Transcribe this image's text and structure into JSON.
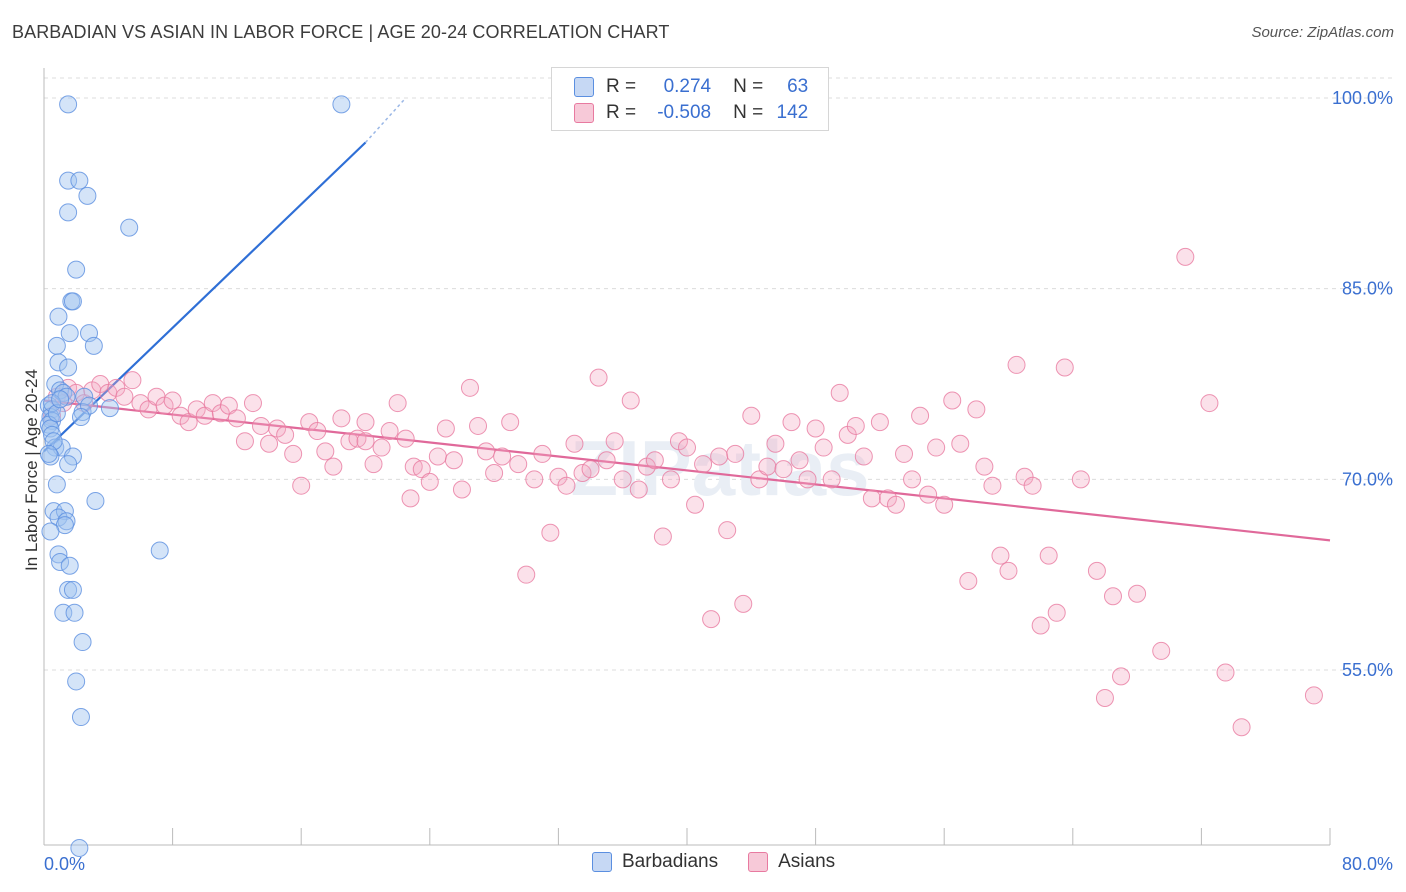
{
  "title": "BARBADIAN VS ASIAN IN LABOR FORCE | AGE 20-24 CORRELATION CHART",
  "source": "Source: ZipAtlas.com",
  "watermark": "ZIPatlas",
  "legend": {
    "r_label": "R =",
    "n_label": "N =",
    "rows": [
      {
        "name": "Barbadians",
        "r": "0.274",
        "n": "63",
        "color": "#5b8fe0",
        "fill": "#c6d8f4"
      },
      {
        "name": "Asians",
        "r": "-0.508",
        "n": "142",
        "color": "#e87aa0",
        "fill": "#f7c9d8"
      }
    ]
  },
  "chart_data": {
    "type": "scatter",
    "title": "BARBADIAN VS ASIAN IN LABOR FORCE | AGE 20-24 CORRELATION CHART",
    "xlabel": "",
    "ylabel": "In Labor Force | Age 20-24",
    "xlim": [
      0,
      80
    ],
    "ylim": [
      40,
      101
    ],
    "x_tick_labels": [
      "0.0%",
      "80.0%"
    ],
    "y_ticks": [
      55,
      70,
      85,
      100
    ],
    "y_tick_labels": [
      "55.0%",
      "70.0%",
      "85.0%",
      "100.0%"
    ],
    "grid": true,
    "series": [
      {
        "name": "Barbadians",
        "color": "#5b8fe0",
        "points": [
          [
            1.5,
            99.5
          ],
          [
            18.5,
            99.5
          ],
          [
            1.5,
            93.5
          ],
          [
            2.2,
            93.5
          ],
          [
            2.7,
            92.3
          ],
          [
            1.5,
            91.0
          ],
          [
            5.3,
            89.8
          ],
          [
            2.0,
            86.5
          ],
          [
            1.7,
            84.0
          ],
          [
            1.8,
            84.0
          ],
          [
            0.9,
            82.8
          ],
          [
            1.6,
            81.5
          ],
          [
            0.8,
            80.5
          ],
          [
            2.8,
            81.5
          ],
          [
            3.1,
            80.5
          ],
          [
            0.9,
            79.2
          ],
          [
            1.5,
            78.8
          ],
          [
            0.7,
            77.5
          ],
          [
            1.0,
            77.0
          ],
          [
            1.2,
            76.8
          ],
          [
            1.4,
            76.5
          ],
          [
            2.5,
            76.5
          ],
          [
            0.3,
            75.8
          ],
          [
            0.5,
            75.5
          ],
          [
            2.4,
            75.3
          ],
          [
            2.8,
            75.8
          ],
          [
            4.1,
            75.6
          ],
          [
            0.4,
            74.9
          ],
          [
            0.5,
            74.6
          ],
          [
            2.3,
            74.9
          ],
          [
            0.3,
            74.3
          ],
          [
            0.4,
            74.0
          ],
          [
            0.5,
            73.5
          ],
          [
            0.7,
            72.5
          ],
          [
            1.1,
            72.5
          ],
          [
            0.4,
            71.8
          ],
          [
            1.8,
            71.8
          ],
          [
            1.5,
            71.2
          ],
          [
            0.8,
            69.6
          ],
          [
            3.2,
            68.3
          ],
          [
            0.6,
            67.5
          ],
          [
            1.3,
            67.5
          ],
          [
            0.9,
            67.0
          ],
          [
            1.4,
            66.7
          ],
          [
            1.3,
            66.4
          ],
          [
            0.4,
            65.9
          ],
          [
            7.2,
            64.4
          ],
          [
            0.9,
            64.1
          ],
          [
            1.0,
            63.5
          ],
          [
            1.6,
            63.2
          ],
          [
            1.5,
            61.3
          ],
          [
            1.8,
            61.3
          ],
          [
            1.2,
            59.5
          ],
          [
            1.9,
            59.5
          ],
          [
            2.4,
            57.2
          ],
          [
            2.0,
            54.1
          ],
          [
            2.3,
            51.3
          ],
          [
            2.2,
            41.0
          ],
          [
            0.5,
            76.0
          ],
          [
            0.8,
            75.2
          ],
          [
            1.0,
            76.3
          ],
          [
            0.6,
            73.0
          ],
          [
            0.3,
            72.0
          ]
        ]
      },
      {
        "name": "Asians",
        "color": "#e87aa0",
        "points": [
          [
            0.5,
            75.0
          ],
          [
            0.8,
            76.5
          ],
          [
            1.2,
            76.0
          ],
          [
            1.5,
            77.2
          ],
          [
            2.0,
            76.8
          ],
          [
            2.5,
            76.0
          ],
          [
            3.0,
            77.0
          ],
          [
            3.5,
            77.5
          ],
          [
            4.0,
            76.8
          ],
          [
            4.5,
            77.2
          ],
          [
            5.0,
            76.5
          ],
          [
            5.5,
            77.8
          ],
          [
            6.0,
            76.0
          ],
          [
            6.5,
            75.5
          ],
          [
            7.0,
            76.5
          ],
          [
            7.5,
            75.8
          ],
          [
            8.0,
            76.2
          ],
          [
            8.5,
            75.0
          ],
          [
            9.0,
            74.5
          ],
          [
            9.5,
            75.5
          ],
          [
            10.0,
            75.0
          ],
          [
            10.5,
            76.0
          ],
          [
            11.0,
            75.2
          ],
          [
            11.5,
            75.8
          ],
          [
            12.0,
            74.8
          ],
          [
            12.5,
            73.0
          ],
          [
            13.0,
            76.0
          ],
          [
            13.5,
            74.2
          ],
          [
            14.0,
            72.8
          ],
          [
            14.5,
            74.0
          ],
          [
            15.0,
            73.5
          ],
          [
            15.5,
            72.0
          ],
          [
            16.0,
            69.5
          ],
          [
            16.5,
            74.5
          ],
          [
            17.0,
            73.8
          ],
          [
            17.5,
            72.2
          ],
          [
            18.0,
            71.0
          ],
          [
            18.5,
            74.8
          ],
          [
            19.0,
            73.0
          ],
          [
            19.5,
            73.2
          ],
          [
            20.0,
            74.5
          ],
          [
            20.5,
            71.2
          ],
          [
            21.0,
            72.5
          ],
          [
            21.5,
            73.8
          ],
          [
            22.0,
            76.0
          ],
          [
            22.5,
            73.2
          ],
          [
            23.0,
            71.0
          ],
          [
            23.5,
            70.8
          ],
          [
            24.0,
            69.8
          ],
          [
            24.5,
            71.8
          ],
          [
            25.0,
            74.0
          ],
          [
            25.5,
            71.5
          ],
          [
            26.0,
            69.2
          ],
          [
            26.5,
            77.2
          ],
          [
            27.0,
            74.2
          ],
          [
            27.5,
            72.2
          ],
          [
            28.0,
            70.5
          ],
          [
            28.5,
            71.8
          ],
          [
            29.0,
            74.5
          ],
          [
            29.5,
            71.2
          ],
          [
            30.0,
            62.5
          ],
          [
            30.5,
            70.0
          ],
          [
            31.0,
            72.0
          ],
          [
            31.5,
            65.8
          ],
          [
            32.0,
            70.2
          ],
          [
            32.5,
            69.5
          ],
          [
            33.0,
            72.8
          ],
          [
            33.5,
            70.5
          ],
          [
            34.0,
            70.8
          ],
          [
            34.5,
            78.0
          ],
          [
            35.0,
            71.5
          ],
          [
            35.5,
            73.0
          ],
          [
            36.0,
            70.0
          ],
          [
            36.5,
            76.2
          ],
          [
            37.0,
            69.2
          ],
          [
            37.5,
            71.0
          ],
          [
            38.0,
            71.5
          ],
          [
            38.5,
            65.5
          ],
          [
            39.0,
            70.0
          ],
          [
            39.5,
            73.0
          ],
          [
            40.0,
            72.5
          ],
          [
            40.5,
            68.0
          ],
          [
            41.0,
            71.2
          ],
          [
            41.5,
            59.0
          ],
          [
            42.0,
            71.8
          ],
          [
            42.5,
            66.0
          ],
          [
            43.0,
            72.0
          ],
          [
            43.5,
            60.2
          ],
          [
            44.0,
            75.0
          ],
          [
            44.5,
            70.0
          ],
          [
            45.0,
            71.0
          ],
          [
            45.5,
            72.8
          ],
          [
            46.0,
            70.8
          ],
          [
            46.5,
            74.5
          ],
          [
            47.0,
            71.5
          ],
          [
            47.5,
            70.0
          ],
          [
            48.0,
            74.0
          ],
          [
            48.5,
            72.5
          ],
          [
            49.0,
            70.0
          ],
          [
            49.5,
            76.8
          ],
          [
            50.0,
            73.5
          ],
          [
            50.5,
            74.2
          ],
          [
            51.0,
            71.8
          ],
          [
            51.5,
            68.5
          ],
          [
            52.0,
            74.5
          ],
          [
            52.5,
            68.5
          ],
          [
            53.0,
            68.0
          ],
          [
            53.5,
            72.0
          ],
          [
            54.0,
            70.0
          ],
          [
            54.5,
            75.0
          ],
          [
            55.0,
            68.8
          ],
          [
            55.5,
            72.5
          ],
          [
            56.0,
            68.0
          ],
          [
            56.5,
            76.2
          ],
          [
            57.0,
            72.8
          ],
          [
            57.5,
            62.0
          ],
          [
            58.0,
            75.5
          ],
          [
            58.5,
            71.0
          ],
          [
            59.0,
            69.5
          ],
          [
            59.5,
            64.0
          ],
          [
            60.0,
            62.8
          ],
          [
            60.5,
            79.0
          ],
          [
            61.0,
            70.2
          ],
          [
            61.5,
            69.5
          ],
          [
            62.0,
            58.5
          ],
          [
            62.5,
            64.0
          ],
          [
            63.0,
            59.5
          ],
          [
            63.5,
            78.8
          ],
          [
            64.5,
            70.0
          ],
          [
            65.5,
            62.8
          ],
          [
            66.0,
            52.8
          ],
          [
            66.5,
            60.8
          ],
          [
            67.0,
            54.5
          ],
          [
            68.0,
            61.0
          ],
          [
            69.5,
            56.5
          ],
          [
            71.0,
            87.5
          ],
          [
            72.5,
            76.0
          ],
          [
            73.5,
            54.8
          ],
          [
            74.5,
            50.5
          ],
          [
            79.0,
            53.0
          ],
          [
            20.0,
            73.0
          ],
          [
            22.8,
            68.5
          ]
        ]
      }
    ],
    "trendlines": [
      {
        "series": "Barbadians",
        "x": [
          0.0,
          20.0
        ],
        "y": [
          72.2,
          96.5
        ],
        "dashed_extension_to": [
          22.5,
          100.0
        ]
      },
      {
        "series": "Asians",
        "x": [
          0.0,
          80.0
        ],
        "y": [
          76.2,
          65.2
        ]
      }
    ]
  }
}
